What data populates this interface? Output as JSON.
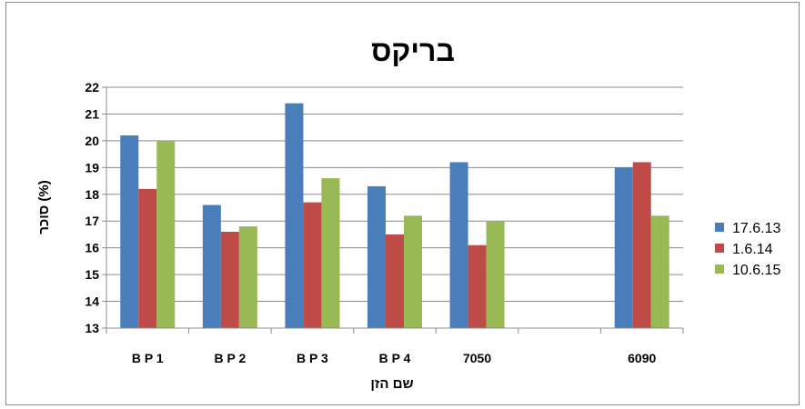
{
  "chart_data": {
    "type": "bar",
    "title": "בריקס",
    "xlabel": "שם הזן",
    "ylabel": "סוכר (%)",
    "ylim": [
      13,
      22
    ],
    "yticks": [
      13,
      14,
      15,
      16,
      17,
      18,
      19,
      20,
      21,
      22
    ],
    "grid": true,
    "legend_position": "right",
    "categories": [
      "B P 1",
      "B P 2",
      "B P 3",
      "B P 4",
      "7050",
      "",
      "6090"
    ],
    "series": [
      {
        "name": "17.6.13",
        "color": "#4a7ebb",
        "values": [
          20.2,
          17.6,
          21.4,
          18.3,
          19.2,
          null,
          19.0
        ]
      },
      {
        "name": "1.6.14",
        "color": "#be4b48",
        "values": [
          18.2,
          16.6,
          17.7,
          16.5,
          16.1,
          null,
          19.2
        ]
      },
      {
        "name": "10.6.15",
        "color": "#98b954",
        "values": [
          20.0,
          16.8,
          18.6,
          17.2,
          17.0,
          null,
          17.2
        ]
      }
    ]
  }
}
